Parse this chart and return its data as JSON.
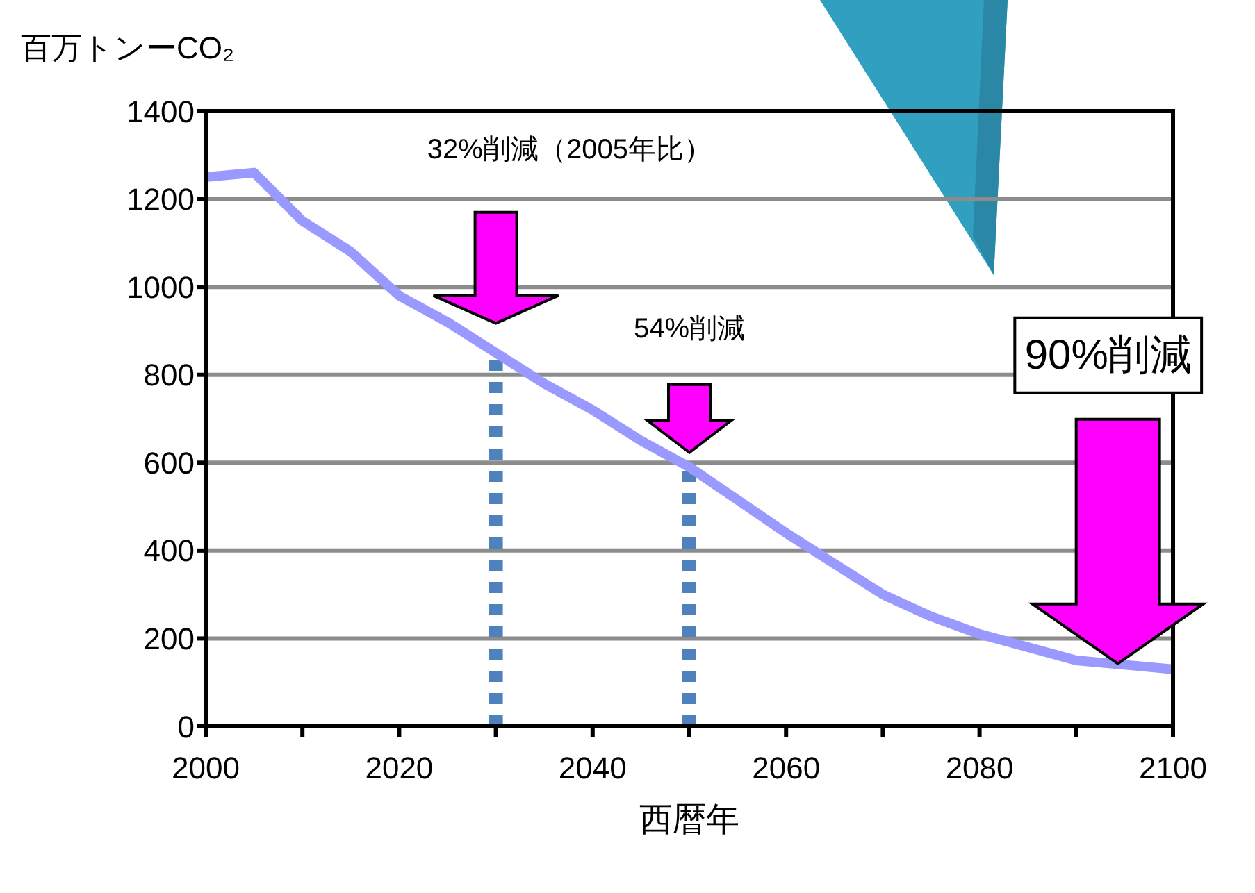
{
  "chart_data": {
    "type": "line",
    "xlabel": "西暦年",
    "ylabel": "百万トンーCO₂",
    "x": [
      2000,
      2005,
      2010,
      2015,
      2020,
      2025,
      2030,
      2035,
      2040,
      2045,
      2050,
      2055,
      2060,
      2065,
      2070,
      2075,
      2080,
      2085,
      2090,
      2095,
      2100
    ],
    "series": [
      {
        "color": "#9999ff",
        "values": [
          1250,
          1260,
          1150,
          1080,
          980,
          920,
          850,
          780,
          720,
          650,
          590,
          515,
          440,
          370,
          300,
          250,
          210,
          180,
          150,
          140,
          130
        ]
      }
    ],
    "xlim": [
      2000,
      2100
    ],
    "xticks": [
      2000,
      {
        "value": 2010,
        "label": null
      },
      2020,
      {
        "value": 2030,
        "label": null
      },
      2040,
      {
        "value": 2050,
        "label": null
      },
      2060,
      {
        "value": 2070,
        "label": null
      },
      2080,
      {
        "value": 2090,
        "label": null
      },
      2100
    ],
    "ylim": [
      0,
      1400
    ],
    "yticks": [
      0,
      200,
      400,
      600,
      800,
      1000,
      1200,
      1400
    ],
    "grid": "y",
    "legend": false,
    "marker": "none",
    "line_style": "solid",
    "ref_lines": [
      {
        "axis": "x",
        "value": 2030,
        "color": "#4f81bd",
        "line_style": "dotted"
      },
      {
        "axis": "x",
        "value": 2050,
        "color": "#4f81bd",
        "line_style": "dotted"
      }
    ],
    "annotations": [
      "32%削減（2005年比）",
      "54%削減",
      "90%削減"
    ]
  }
}
